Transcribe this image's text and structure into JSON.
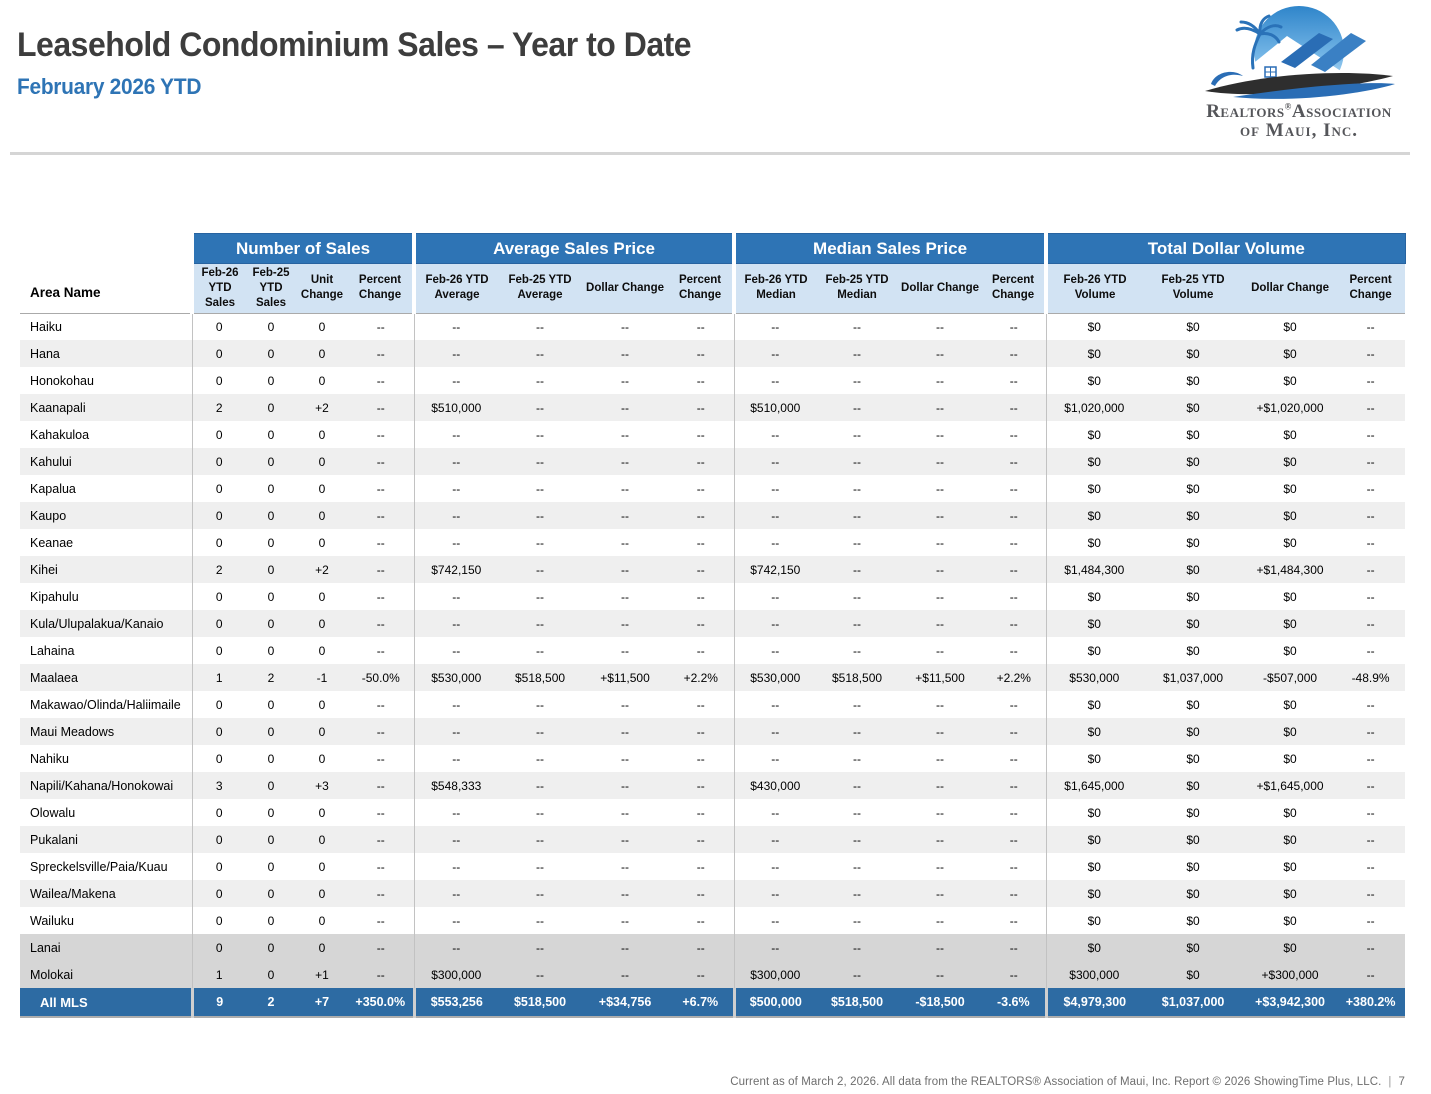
{
  "header": {
    "title": "Leasehold Condominium Sales – Year to Date",
    "subtitle": "February 2026 YTD",
    "logo": {
      "name_part1": "Realtors",
      "registered_mark": "®",
      "name_part2": "Association",
      "name_line2": "of Maui, Inc."
    }
  },
  "colors": {
    "header_blue": "#2e74b5",
    "subhead_blue": "#d2e3f3",
    "total_blue": "#2d6ba3",
    "row_light": "#efefef",
    "row_dark": "#d6d6d6",
    "title_gray": "#3d3d3d",
    "footer_gray": "#6e6e6e"
  },
  "table": {
    "area_header": "Area Name",
    "groups": [
      {
        "label": "Number of Sales",
        "columns": [
          "Feb-26 YTD Sales",
          "Feb-25 YTD Sales",
          "Unit Change",
          "Percent Change"
        ]
      },
      {
        "label": "Average Sales Price",
        "columns": [
          "Feb-26 YTD Average",
          "Feb-25 YTD Average",
          "Dollar Change",
          "Percent Change"
        ]
      },
      {
        "label": "Median Sales Price",
        "columns": [
          "Feb-26 YTD Median",
          "Feb-25 YTD Median",
          "Dollar Change",
          "Percent Change"
        ]
      },
      {
        "label": "Total Dollar Volume",
        "columns": [
          "Feb-26 YTD Volume",
          "Feb-25 YTD Volume",
          "Dollar Change",
          "Percent Change"
        ]
      }
    ],
    "rows": [
      {
        "area": "Haiku",
        "shade": "white",
        "values": [
          "0",
          "0",
          "0",
          "--",
          "--",
          "--",
          "--",
          "--",
          "--",
          "--",
          "--",
          "--",
          "$0",
          "$0",
          "$0",
          "--"
        ]
      },
      {
        "area": "Hana",
        "shade": "light",
        "values": [
          "0",
          "0",
          "0",
          "--",
          "--",
          "--",
          "--",
          "--",
          "--",
          "--",
          "--",
          "--",
          "$0",
          "$0",
          "$0",
          "--"
        ]
      },
      {
        "area": "Honokohau",
        "shade": "white",
        "values": [
          "0",
          "0",
          "0",
          "--",
          "--",
          "--",
          "--",
          "--",
          "--",
          "--",
          "--",
          "--",
          "$0",
          "$0",
          "$0",
          "--"
        ]
      },
      {
        "area": "Kaanapali",
        "shade": "light",
        "values": [
          "2",
          "0",
          "+2",
          "--",
          "$510,000",
          "--",
          "--",
          "--",
          "$510,000",
          "--",
          "--",
          "--",
          "$1,020,000",
          "$0",
          "+$1,020,000",
          "--"
        ]
      },
      {
        "area": "Kahakuloa",
        "shade": "white",
        "values": [
          "0",
          "0",
          "0",
          "--",
          "--",
          "--",
          "--",
          "--",
          "--",
          "--",
          "--",
          "--",
          "$0",
          "$0",
          "$0",
          "--"
        ]
      },
      {
        "area": "Kahului",
        "shade": "light",
        "values": [
          "0",
          "0",
          "0",
          "--",
          "--",
          "--",
          "--",
          "--",
          "--",
          "--",
          "--",
          "--",
          "$0",
          "$0",
          "$0",
          "--"
        ]
      },
      {
        "area": "Kapalua",
        "shade": "white",
        "values": [
          "0",
          "0",
          "0",
          "--",
          "--",
          "--",
          "--",
          "--",
          "--",
          "--",
          "--",
          "--",
          "$0",
          "$0",
          "$0",
          "--"
        ]
      },
      {
        "area": "Kaupo",
        "shade": "light",
        "values": [
          "0",
          "0",
          "0",
          "--",
          "--",
          "--",
          "--",
          "--",
          "--",
          "--",
          "--",
          "--",
          "$0",
          "$0",
          "$0",
          "--"
        ]
      },
      {
        "area": "Keanae",
        "shade": "white",
        "values": [
          "0",
          "0",
          "0",
          "--",
          "--",
          "--",
          "--",
          "--",
          "--",
          "--",
          "--",
          "--",
          "$0",
          "$0",
          "$0",
          "--"
        ]
      },
      {
        "area": "Kihei",
        "shade": "light",
        "values": [
          "2",
          "0",
          "+2",
          "--",
          "$742,150",
          "--",
          "--",
          "--",
          "$742,150",
          "--",
          "--",
          "--",
          "$1,484,300",
          "$0",
          "+$1,484,300",
          "--"
        ]
      },
      {
        "area": "Kipahulu",
        "shade": "white",
        "values": [
          "0",
          "0",
          "0",
          "--",
          "--",
          "--",
          "--",
          "--",
          "--",
          "--",
          "--",
          "--",
          "$0",
          "$0",
          "$0",
          "--"
        ]
      },
      {
        "area": "Kula/Ulupalakua/Kanaio",
        "shade": "light",
        "values": [
          "0",
          "0",
          "0",
          "--",
          "--",
          "--",
          "--",
          "--",
          "--",
          "--",
          "--",
          "--",
          "$0",
          "$0",
          "$0",
          "--"
        ]
      },
      {
        "area": "Lahaina",
        "shade": "white",
        "values": [
          "0",
          "0",
          "0",
          "--",
          "--",
          "--",
          "--",
          "--",
          "--",
          "--",
          "--",
          "--",
          "$0",
          "$0",
          "$0",
          "--"
        ]
      },
      {
        "area": "Maalaea",
        "shade": "light",
        "values": [
          "1",
          "2",
          "-1",
          "-50.0%",
          "$530,000",
          "$518,500",
          "+$11,500",
          "+2.2%",
          "$530,000",
          "$518,500",
          "+$11,500",
          "+2.2%",
          "$530,000",
          "$1,037,000",
          "-$507,000",
          "-48.9%"
        ]
      },
      {
        "area": "Makawao/Olinda/Haliimaile",
        "shade": "white",
        "values": [
          "0",
          "0",
          "0",
          "--",
          "--",
          "--",
          "--",
          "--",
          "--",
          "--",
          "--",
          "--",
          "$0",
          "$0",
          "$0",
          "--"
        ]
      },
      {
        "area": "Maui Meadows",
        "shade": "light",
        "values": [
          "0",
          "0",
          "0",
          "--",
          "--",
          "--",
          "--",
          "--",
          "--",
          "--",
          "--",
          "--",
          "$0",
          "$0",
          "$0",
          "--"
        ]
      },
      {
        "area": "Nahiku",
        "shade": "white",
        "values": [
          "0",
          "0",
          "0",
          "--",
          "--",
          "--",
          "--",
          "--",
          "--",
          "--",
          "--",
          "--",
          "$0",
          "$0",
          "$0",
          "--"
        ]
      },
      {
        "area": "Napili/Kahana/Honokowai",
        "shade": "light",
        "values": [
          "3",
          "0",
          "+3",
          "--",
          "$548,333",
          "--",
          "--",
          "--",
          "$430,000",
          "--",
          "--",
          "--",
          "$1,645,000",
          "$0",
          "+$1,645,000",
          "--"
        ]
      },
      {
        "area": "Olowalu",
        "shade": "white",
        "values": [
          "0",
          "0",
          "0",
          "--",
          "--",
          "--",
          "--",
          "--",
          "--",
          "--",
          "--",
          "--",
          "$0",
          "$0",
          "$0",
          "--"
        ]
      },
      {
        "area": "Pukalani",
        "shade": "light",
        "values": [
          "0",
          "0",
          "0",
          "--",
          "--",
          "--",
          "--",
          "--",
          "--",
          "--",
          "--",
          "--",
          "$0",
          "$0",
          "$0",
          "--"
        ]
      },
      {
        "area": "Spreckelsville/Paia/Kuau",
        "shade": "white",
        "values": [
          "0",
          "0",
          "0",
          "--",
          "--",
          "--",
          "--",
          "--",
          "--",
          "--",
          "--",
          "--",
          "$0",
          "$0",
          "$0",
          "--"
        ]
      },
      {
        "area": "Wailea/Makena",
        "shade": "light",
        "values": [
          "0",
          "0",
          "0",
          "--",
          "--",
          "--",
          "--",
          "--",
          "--",
          "--",
          "--",
          "--",
          "$0",
          "$0",
          "$0",
          "--"
        ]
      },
      {
        "area": "Wailuku",
        "shade": "white",
        "values": [
          "0",
          "0",
          "0",
          "--",
          "--",
          "--",
          "--",
          "--",
          "--",
          "--",
          "--",
          "--",
          "$0",
          "$0",
          "$0",
          "--"
        ]
      },
      {
        "area": "Lanai",
        "shade": "dark",
        "values": [
          "0",
          "0",
          "0",
          "--",
          "--",
          "--",
          "--",
          "--",
          "--",
          "--",
          "--",
          "--",
          "$0",
          "$0",
          "$0",
          "--"
        ]
      },
      {
        "area": "Molokai",
        "shade": "dark",
        "values": [
          "1",
          "0",
          "+1",
          "--",
          "$300,000",
          "--",
          "--",
          "--",
          "$300,000",
          "--",
          "--",
          "--",
          "$300,000",
          "$0",
          "+$300,000",
          "--"
        ]
      }
    ],
    "total_row": {
      "area": "All MLS",
      "values": [
        "9",
        "2",
        "+7",
        "+350.0%",
        "$553,256",
        "$518,500",
        "+$34,756",
        "+6.7%",
        "$500,000",
        "$518,500",
        "-$18,500",
        "-3.6%",
        "$4,979,300",
        "$1,037,000",
        "+$3,942,300",
        "+380.2%"
      ]
    }
  },
  "footer": {
    "text": "Current as of March 2, 2026. All data from the REALTORS® Association of Maui, Inc. Report © 2026 ShowingTime Plus, LLC.",
    "separator": "|",
    "page": "7"
  }
}
